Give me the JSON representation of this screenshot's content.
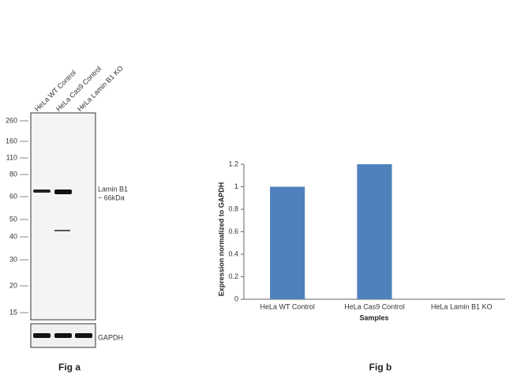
{
  "blot": {
    "lanes": [
      "HeLa WT Control",
      "HeLa Cas9 Control",
      "HeLa Lamin B1 KO"
    ],
    "markers": [
      "260",
      "160",
      "110",
      "80",
      "60",
      "50",
      "40",
      "30",
      "20",
      "15"
    ],
    "band_label": "Lamin B1",
    "band_size": "~ 66kDa",
    "loading_label": "GAPDH",
    "caption": "Fig a"
  },
  "chart_data": {
    "type": "bar",
    "categories": [
      "HeLa WT Control",
      "HeLa Cas9 Control",
      "HeLa Lamin B1 KO"
    ],
    "values": [
      1,
      1.2,
      0
    ],
    "color": "#4f81bd",
    "ylim": [
      0,
      1.2
    ],
    "yticks": [
      0,
      0.2,
      0.4,
      0.6,
      0.8,
      1,
      1.2
    ],
    "y_label": "Expression  normalized to GAPDH",
    "x_label": "Samples",
    "caption": "Fig b"
  }
}
